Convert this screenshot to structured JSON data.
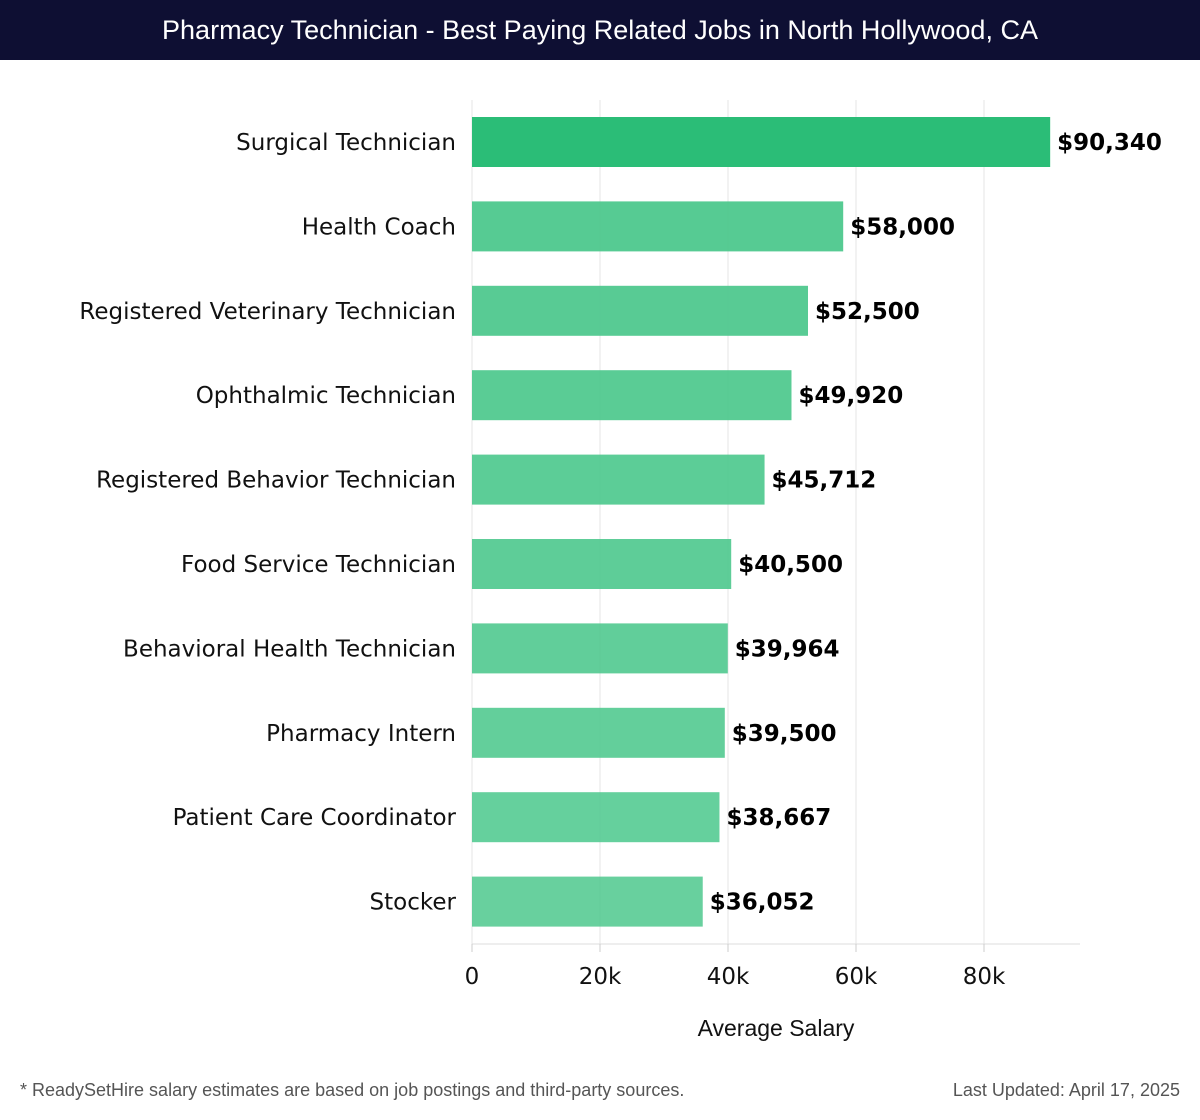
{
  "header": {
    "title": "Pharmacy Technician - Best Paying Related Jobs in North Hollywood, CA"
  },
  "chart_data": {
    "type": "bar",
    "orientation": "horizontal",
    "title": "Pharmacy Technician - Best Paying Related Jobs in North Hollywood, CA",
    "xlabel": "Average Salary",
    "ylabel": "",
    "xlim": [
      0,
      95000
    ],
    "xticks": [
      0,
      20000,
      40000,
      60000,
      80000
    ],
    "xtick_labels": [
      "0",
      "20k",
      "40k",
      "60k",
      "80k"
    ],
    "categories": [
      "Surgical Technician",
      "Health Coach",
      "Registered Veterinary Technician",
      "Ophthalmic Technician",
      "Registered Behavior Technician",
      "Food Service Technician",
      "Behavioral Health Technician",
      "Pharmacy Intern",
      "Patient Care Coordinator",
      "Stocker"
    ],
    "values": [
      90340,
      58000,
      52500,
      49920,
      45712,
      40500,
      39964,
      39500,
      38667,
      36052
    ],
    "value_labels": [
      "$90,340",
      "$58,000",
      "$52,500",
      "$49,920",
      "$45,712",
      "$40,500",
      "$39,964",
      "$39,500",
      "$38,667",
      "$36,052"
    ],
    "grid": true,
    "colors": {
      "top": "#2bbd77",
      "rest": "#4dc88d",
      "grid": "#e4e4e4"
    }
  },
  "footer": {
    "note": "* ReadySetHire salary estimates are based on job postings and third-party sources.",
    "updated": "Last Updated: April 17, 2025"
  }
}
